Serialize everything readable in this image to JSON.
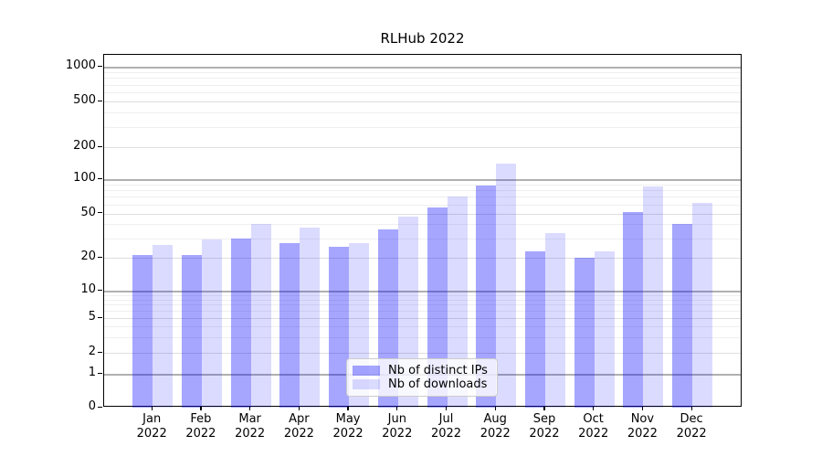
{
  "chart_data": {
    "type": "bar",
    "title": "RLHub 2022",
    "categories": [
      "Jan",
      "Feb",
      "Mar",
      "Apr",
      "May",
      "Jun",
      "Jul",
      "Aug",
      "Sep",
      "Oct",
      "Nov",
      "Dec"
    ],
    "x_year_label": "2022",
    "series": [
      {
        "name": "Nb of distinct IPs",
        "color": "rgba(0,0,255,0.35)",
        "values": [
          21,
          21,
          30,
          27,
          25,
          36,
          56,
          88,
          23,
          20,
          51,
          40
        ]
      },
      {
        "name": "Nb of downloads",
        "color": "rgba(0,0,255,0.14)",
        "values": [
          26,
          29,
          40,
          37,
          27,
          47,
          71,
          140,
          33,
          23,
          87,
          62
        ]
      }
    ],
    "y_ticks": [
      0,
      1,
      2,
      5,
      10,
      20,
      50,
      100,
      200,
      500,
      1000
    ],
    "y_minor_ticks": [
      3,
      4,
      6,
      7,
      8,
      9,
      30,
      40,
      60,
      70,
      80,
      90,
      300,
      400,
      600,
      700,
      800,
      900
    ],
    "y_scale": "symlog",
    "ylim": [
      0,
      1300
    ],
    "xlabel": "",
    "ylabel": "",
    "grid": true,
    "legend_position": "lower center"
  }
}
